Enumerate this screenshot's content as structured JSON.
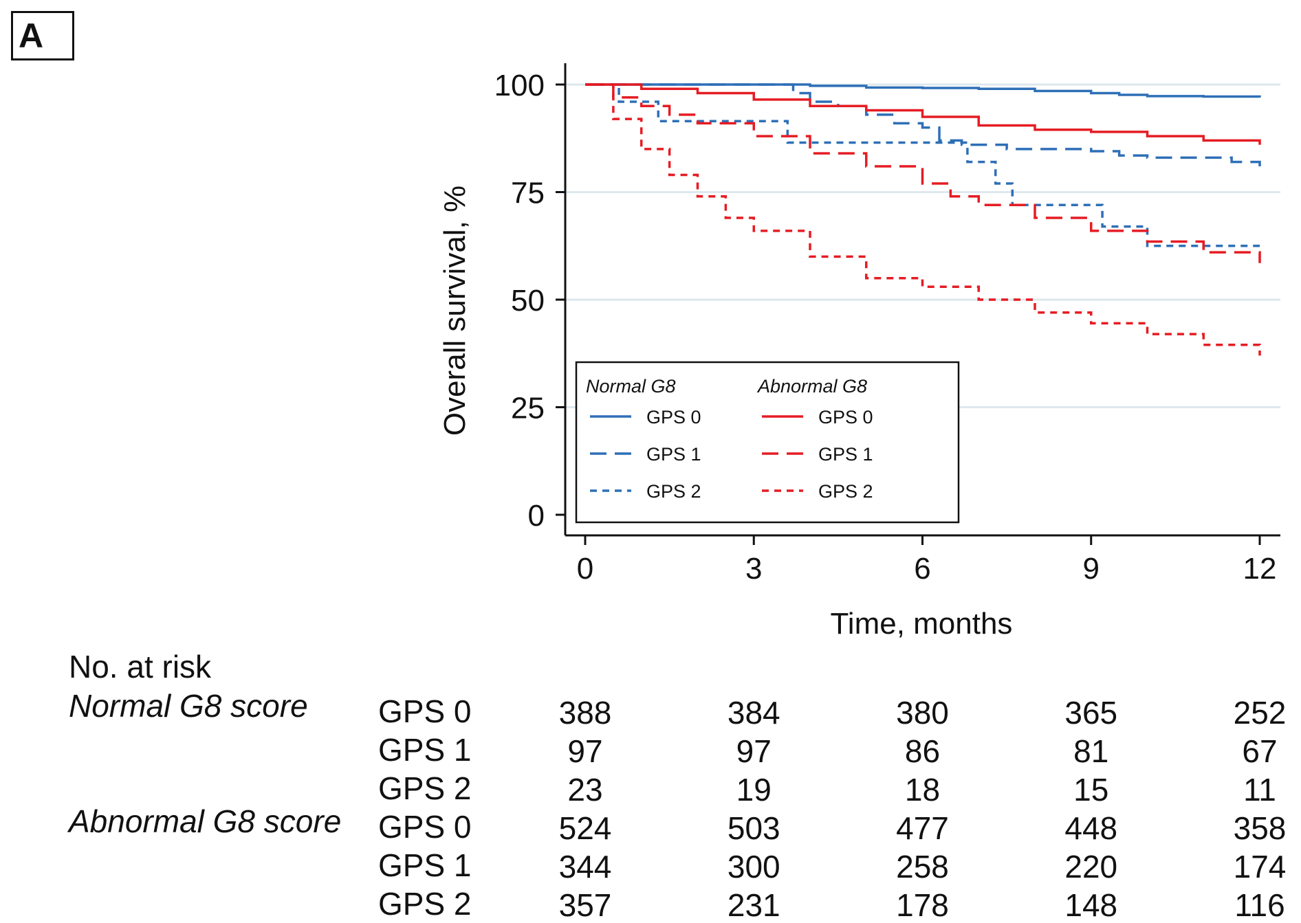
{
  "panel_label": "A",
  "chart_data": {
    "type": "line",
    "subtype": "kaplan-meier step curves",
    "xlabel": "Time, months",
    "ylabel": "Overall survival, %",
    "xlim": [
      0,
      12
    ],
    "ylim": [
      0,
      100
    ],
    "xticks": [
      0,
      3,
      6,
      9,
      12
    ],
    "yticks": [
      0,
      25,
      50,
      75,
      100
    ],
    "grid": "horizontal",
    "legend": {
      "placement": "lower-left inside plot",
      "group_headers": [
        "Normal G8",
        "Abnormal G8"
      ]
    },
    "series": [
      {
        "name": "GPS 0",
        "group": "Normal G8",
        "color": "#2e6fb7",
        "dash": "solid",
        "points": [
          [
            0,
            100
          ],
          [
            1,
            100
          ],
          [
            2,
            100
          ],
          [
            3,
            100
          ],
          [
            4,
            99.7
          ],
          [
            5,
            99.3
          ],
          [
            6,
            99.2
          ],
          [
            7,
            99
          ],
          [
            8,
            98.5
          ],
          [
            9,
            98
          ],
          [
            9.5,
            97.6
          ],
          [
            10,
            97.3
          ],
          [
            11,
            97.2
          ],
          [
            12,
            97
          ]
        ]
      },
      {
        "name": "GPS 1",
        "group": "Normal G8",
        "color": "#2e6fb7",
        "dash": "long",
        "points": [
          [
            0,
            100
          ],
          [
            3.5,
            100
          ],
          [
            3.7,
            98
          ],
          [
            4,
            96
          ],
          [
            4.5,
            95
          ],
          [
            5,
            93
          ],
          [
            5.5,
            91
          ],
          [
            6,
            90
          ],
          [
            6.3,
            87
          ],
          [
            6.7,
            86
          ],
          [
            7.5,
            85
          ],
          [
            9,
            84.5
          ],
          [
            9.5,
            83.5
          ],
          [
            10,
            83
          ],
          [
            11,
            83
          ],
          [
            11.5,
            82
          ],
          [
            12,
            81
          ]
        ]
      },
      {
        "name": "GPS 2",
        "group": "Normal G8",
        "color": "#2e6fb7",
        "dash": "short",
        "points": [
          [
            0,
            100
          ],
          [
            0.6,
            96
          ],
          [
            1.3,
            91.5
          ],
          [
            3.6,
            86.5
          ],
          [
            6.8,
            82
          ],
          [
            7.3,
            77
          ],
          [
            7.6,
            72
          ],
          [
            9.2,
            67
          ],
          [
            10,
            62.5
          ],
          [
            12,
            62.5
          ]
        ]
      },
      {
        "name": "GPS 0",
        "group": "Abnormal G8",
        "color": "#e51c23",
        "dash": "solid",
        "points": [
          [
            0,
            100
          ],
          [
            1,
            99
          ],
          [
            2,
            98
          ],
          [
            3,
            96.5
          ],
          [
            4,
            95
          ],
          [
            5,
            94
          ],
          [
            6,
            92.5
          ],
          [
            7,
            90.5
          ],
          [
            8,
            89.5
          ],
          [
            9,
            89
          ],
          [
            10,
            88
          ],
          [
            11,
            87
          ],
          [
            12,
            86
          ]
        ]
      },
      {
        "name": "GPS 1",
        "group": "Abnormal G8",
        "color": "#e51c23",
        "dash": "long",
        "points": [
          [
            0,
            100
          ],
          [
            0.5,
            97
          ],
          [
            1,
            95
          ],
          [
            1.5,
            93
          ],
          [
            2,
            91
          ],
          [
            3,
            88
          ],
          [
            4,
            84
          ],
          [
            5,
            81
          ],
          [
            6,
            77
          ],
          [
            6.5,
            74
          ],
          [
            7,
            72
          ],
          [
            8,
            69
          ],
          [
            9,
            66
          ],
          [
            10,
            63.5
          ],
          [
            11,
            61
          ],
          [
            12,
            58.5
          ]
        ]
      },
      {
        "name": "GPS 2",
        "group": "Abnormal G8",
        "color": "#e51c23",
        "dash": "short",
        "points": [
          [
            0,
            100
          ],
          [
            0.5,
            92
          ],
          [
            1,
            85
          ],
          [
            1.5,
            79
          ],
          [
            2,
            74
          ],
          [
            2.5,
            69
          ],
          [
            3,
            66
          ],
          [
            4,
            60
          ],
          [
            5,
            55
          ],
          [
            6,
            53
          ],
          [
            7,
            50
          ],
          [
            8,
            47
          ],
          [
            9,
            44.5
          ],
          [
            10,
            42
          ],
          [
            11,
            39.5
          ],
          [
            12,
            37
          ]
        ]
      }
    ]
  },
  "risk_table": {
    "title": "No. at risk",
    "groups": [
      {
        "label": "Normal G8 score",
        "rows": [
          {
            "label": "GPS 0",
            "values": [
              388,
              384,
              380,
              365,
              252
            ]
          },
          {
            "label": "GPS 1",
            "values": [
              97,
              97,
              86,
              81,
              67
            ]
          },
          {
            "label": "GPS 2",
            "values": [
              23,
              19,
              18,
              15,
              11
            ]
          }
        ]
      },
      {
        "label": "Abnormal G8 score",
        "rows": [
          {
            "label": "GPS 0",
            "values": [
              524,
              503,
              477,
              448,
              358
            ]
          },
          {
            "label": "GPS 1",
            "values": [
              344,
              300,
              258,
              220,
              174
            ]
          },
          {
            "label": "GPS 2",
            "values": [
              357,
              231,
              178,
              148,
              116
            ]
          }
        ]
      }
    ]
  }
}
